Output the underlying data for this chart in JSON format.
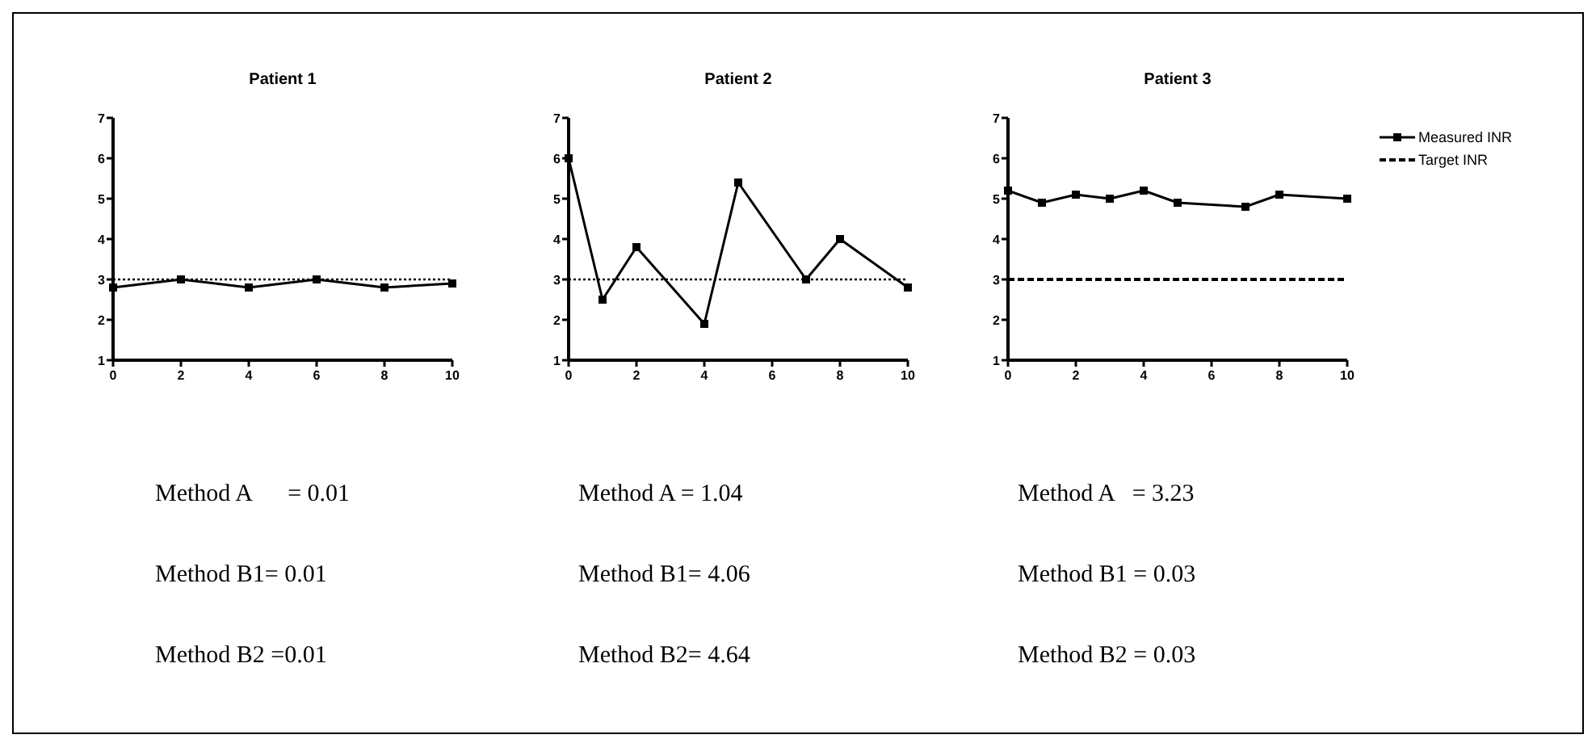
{
  "chart_data": [
    {
      "type": "line",
      "title": "Patient 1",
      "xlim": [
        0,
        10
      ],
      "xticks": [
        0,
        2,
        4,
        6,
        8,
        10
      ],
      "ylim": [
        1,
        7
      ],
      "yticks": [
        1,
        2,
        3,
        4,
        5,
        6,
        7
      ],
      "grid": false,
      "legend": false,
      "series": [
        {
          "color": "#000000",
          "marker": "square",
          "line_style": "solid",
          "x": [
            0,
            2,
            4,
            6,
            8,
            10
          ],
          "values": [
            2.8,
            3.0,
            2.8,
            3.0,
            2.8,
            2.9
          ]
        },
        {
          "color": "#000000",
          "marker": "none",
          "line_style": "dotted",
          "x": [
            0,
            10
          ],
          "values": [
            3,
            3
          ]
        }
      ],
      "annotations": [
        "Method A      = 0.01",
        "Method B1= 0.01",
        "Method B2 =0.01"
      ]
    },
    {
      "type": "line",
      "title": "Patient 2",
      "xlim": [
        0,
        10
      ],
      "xticks": [
        0,
        2,
        4,
        6,
        8,
        10
      ],
      "ylim": [
        1,
        7
      ],
      "yticks": [
        1,
        2,
        3,
        4,
        5,
        6,
        7
      ],
      "grid": false,
      "legend": false,
      "series": [
        {
          "color": "#000000",
          "marker": "square",
          "line_style": "solid",
          "x": [
            0,
            1,
            2,
            4,
            5,
            7,
            8,
            10
          ],
          "values": [
            6.0,
            2.5,
            3.8,
            1.9,
            5.4,
            3.0,
            4.0,
            2.8
          ]
        },
        {
          "color": "#000000",
          "marker": "none",
          "line_style": "dotted",
          "x": [
            0,
            10
          ],
          "values": [
            3,
            3
          ]
        }
      ],
      "annotations": [
        "Method A = 1.04",
        "Method B1= 4.06",
        "Method B2= 4.64"
      ]
    },
    {
      "type": "line",
      "title": "Patient 3",
      "xlim": [
        0,
        10
      ],
      "xticks": [
        0,
        2,
        4,
        6,
        8,
        10
      ],
      "ylim": [
        1,
        7
      ],
      "yticks": [
        1,
        2,
        3,
        4,
        5,
        6,
        7
      ],
      "grid": false,
      "legend": "top right",
      "series": [
        {
          "name": "Measured INR",
          "color": "#000000",
          "marker": "square",
          "line_style": "solid",
          "x": [
            0,
            1,
            2,
            3,
            4,
            5,
            7,
            8,
            10
          ],
          "values": [
            5.2,
            4.9,
            5.1,
            5.0,
            5.2,
            4.9,
            4.8,
            5.1,
            5.0
          ]
        },
        {
          "name": "Target INR",
          "color": "#000000",
          "marker": "none",
          "line_style": "dashed",
          "x": [
            0,
            10
          ],
          "values": [
            3,
            3
          ]
        }
      ],
      "annotations": [
        "Method A   = 3.23",
        "Method B1 = 0.03",
        "Method B2 = 0.03"
      ]
    }
  ]
}
